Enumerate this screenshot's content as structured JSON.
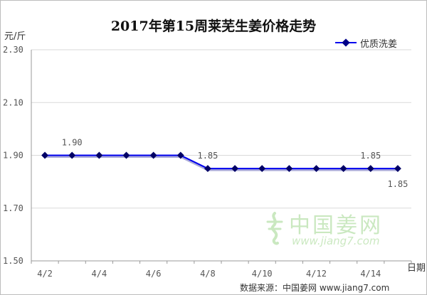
{
  "chart_data": {
    "type": "line",
    "title": "2017年第15周莱芜生姜价格走势",
    "ylabel": "元/斤",
    "xlabel": "日期",
    "ylim": [
      1.5,
      2.3
    ],
    "y_ticks": [
      "2.30",
      "2.10",
      "1.90",
      "1.70",
      "1.50"
    ],
    "x_tick_labels": [
      "4/2",
      "4/4",
      "4/6",
      "4/8",
      "4/10",
      "4/12",
      "4/14"
    ],
    "x": [
      "4/2",
      "4/3",
      "4/4",
      "4/5",
      "4/6",
      "4/7",
      "4/8",
      "4/9",
      "4/10",
      "4/11",
      "4/12",
      "4/13",
      "4/14",
      "4/15"
    ],
    "series": [
      {
        "name": "优质洗姜",
        "color": "#0000ee",
        "values": [
          1.9,
          1.9,
          1.9,
          1.9,
          1.9,
          1.9,
          1.85,
          1.85,
          1.85,
          1.85,
          1.85,
          1.85,
          1.85,
          1.85
        ]
      }
    ],
    "data_labels": [
      {
        "x": "4/3",
        "text": "1.90"
      },
      {
        "x": "4/8",
        "text": "1.85"
      },
      {
        "x": "4/14",
        "text": "1.85"
      },
      {
        "x": "4/15",
        "text": "1.85"
      }
    ],
    "grid": true,
    "legend_position": "top-right"
  },
  "source": "数据来源：中国姜网 www.jiang7.com",
  "watermark": {
    "name": "中国姜网",
    "url": "www.jiang7.com",
    "color": "#6bbf4e"
  }
}
